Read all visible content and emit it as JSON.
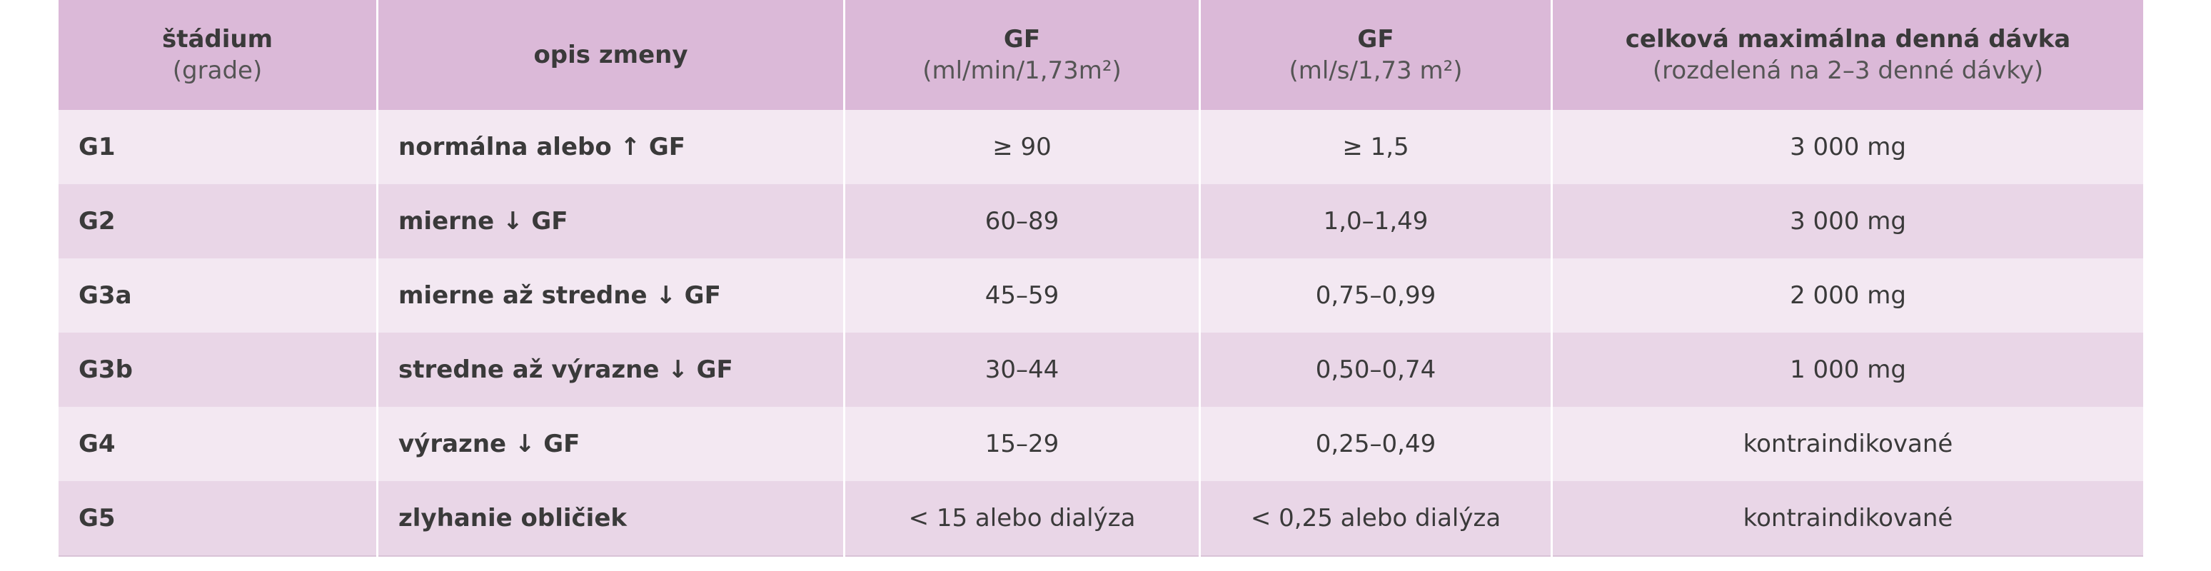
{
  "table": {
    "header": [
      {
        "title": "štádium",
        "subtitle": "(grade)"
      },
      {
        "title": "opis zmeny"
      },
      {
        "title": "GF",
        "subtitle": "(ml/min/1,73m²)"
      },
      {
        "title": "GF",
        "subtitle": "(ml/s/1,73 m²)"
      },
      {
        "title": "celková maximálna denná dávka",
        "subtitle": "(rozdelená na 2–3 denné dávky)"
      }
    ],
    "rows": [
      [
        "G1",
        "normálna alebo ↑ GF",
        "≥ 90",
        "≥ 1,5",
        "3 000 mg"
      ],
      [
        "G2",
        "mierne ↓ GF",
        "60–89",
        "1,0–1,49",
        "3 000 mg"
      ],
      [
        "G3a",
        "mierne až stredne ↓ GF",
        "45–59",
        "0,75–0,99",
        "2 000 mg"
      ],
      [
        "G3b",
        "stredne až výrazne ↓ GF",
        "30–44",
        "0,50–0,74",
        "1 000 mg"
      ],
      [
        "G4",
        "výrazne ↓ GF",
        "15–29",
        "0,25–0,49",
        "kontraindikované"
      ],
      [
        "G5",
        "zlyhanie obličiek",
        "< 15 alebo dialýza",
        "< 0,25 alebo dialýza",
        "kontraindikované"
      ]
    ]
  }
}
